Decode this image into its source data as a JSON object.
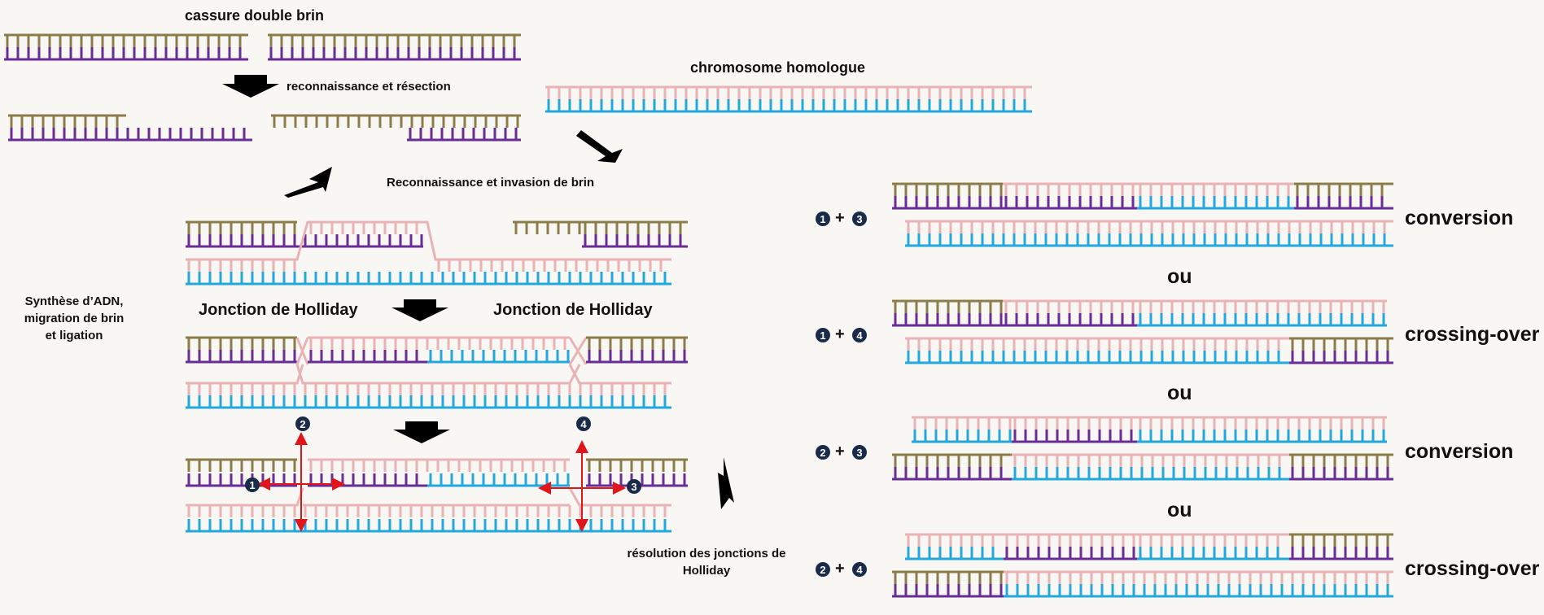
{
  "labels": {
    "cassure": "cassure double brin",
    "reconnaissance_resection": "reconnaissance et résection",
    "chromosome_homologue": "chromosome homologue",
    "invasion": "Reconnaissance et invasion de brin",
    "synthese": "Synthèse d’ADN, migration de brin et ligation",
    "jonction_left": "Jonction de Holliday",
    "jonction_right": "Jonction de Holliday",
    "resolution": "résolution des jonctions de Holliday"
  },
  "cut_numbers": [
    "1",
    "2",
    "3",
    "4"
  ],
  "outcomes": [
    {
      "combo_a": "1",
      "combo_b": "3",
      "plus": "+",
      "result": "conversion"
    },
    {
      "combo_a": "1",
      "combo_b": "4",
      "plus": "+",
      "result": "crossing-over"
    },
    {
      "combo_a": "2",
      "combo_b": "3",
      "plus": "+",
      "result": "conversion"
    },
    {
      "combo_a": "2",
      "combo_b": "4",
      "plus": "+",
      "result": "crossing-over"
    }
  ],
  "separator": "ou",
  "colors": {
    "olive": "#8a7d4a",
    "purple": "#6a2c96",
    "pink": "#e9b3b5",
    "blue": "#22a8dd",
    "red": "#e0161b",
    "arrow": "#000000",
    "circle": "#1a2b4a"
  }
}
